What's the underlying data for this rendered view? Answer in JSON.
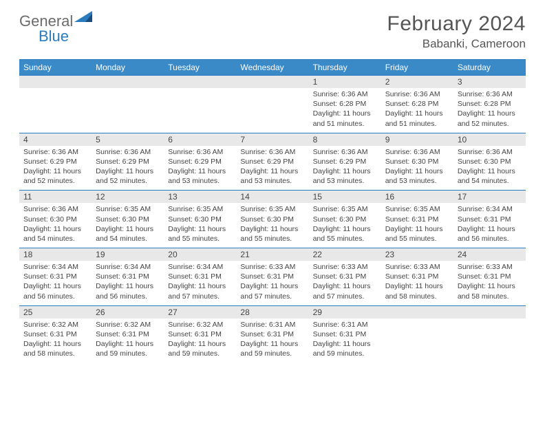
{
  "brand": {
    "word1": "General",
    "word2": "Blue"
  },
  "title": "February 2024",
  "subtitle": "Babanki, Cameroon",
  "colors": {
    "header_bg": "#3a8ac8",
    "header_text": "#ffffff",
    "border": "#2b7bbf",
    "daynum_bg": "#e8e8e8",
    "text": "#444444",
    "title_text": "#555555",
    "logo_gray": "#6b6b6b",
    "logo_blue": "#2b7bbf",
    "logo_dark": "#1a4c7a"
  },
  "day_headers": [
    "Sunday",
    "Monday",
    "Tuesday",
    "Wednesday",
    "Thursday",
    "Friday",
    "Saturday"
  ],
  "weeks": [
    [
      {
        "n": "",
        "lines": []
      },
      {
        "n": "",
        "lines": []
      },
      {
        "n": "",
        "lines": []
      },
      {
        "n": "",
        "lines": []
      },
      {
        "n": "1",
        "lines": [
          "Sunrise: 6:36 AM",
          "Sunset: 6:28 PM",
          "Daylight: 11 hours and 51 minutes."
        ]
      },
      {
        "n": "2",
        "lines": [
          "Sunrise: 6:36 AM",
          "Sunset: 6:28 PM",
          "Daylight: 11 hours and 51 minutes."
        ]
      },
      {
        "n": "3",
        "lines": [
          "Sunrise: 6:36 AM",
          "Sunset: 6:28 PM",
          "Daylight: 11 hours and 52 minutes."
        ]
      }
    ],
    [
      {
        "n": "4",
        "lines": [
          "Sunrise: 6:36 AM",
          "Sunset: 6:29 PM",
          "Daylight: 11 hours and 52 minutes."
        ]
      },
      {
        "n": "5",
        "lines": [
          "Sunrise: 6:36 AM",
          "Sunset: 6:29 PM",
          "Daylight: 11 hours and 52 minutes."
        ]
      },
      {
        "n": "6",
        "lines": [
          "Sunrise: 6:36 AM",
          "Sunset: 6:29 PM",
          "Daylight: 11 hours and 53 minutes."
        ]
      },
      {
        "n": "7",
        "lines": [
          "Sunrise: 6:36 AM",
          "Sunset: 6:29 PM",
          "Daylight: 11 hours and 53 minutes."
        ]
      },
      {
        "n": "8",
        "lines": [
          "Sunrise: 6:36 AM",
          "Sunset: 6:29 PM",
          "Daylight: 11 hours and 53 minutes."
        ]
      },
      {
        "n": "9",
        "lines": [
          "Sunrise: 6:36 AM",
          "Sunset: 6:30 PM",
          "Daylight: 11 hours and 53 minutes."
        ]
      },
      {
        "n": "10",
        "lines": [
          "Sunrise: 6:36 AM",
          "Sunset: 6:30 PM",
          "Daylight: 11 hours and 54 minutes."
        ]
      }
    ],
    [
      {
        "n": "11",
        "lines": [
          "Sunrise: 6:36 AM",
          "Sunset: 6:30 PM",
          "Daylight: 11 hours and 54 minutes."
        ]
      },
      {
        "n": "12",
        "lines": [
          "Sunrise: 6:35 AM",
          "Sunset: 6:30 PM",
          "Daylight: 11 hours and 54 minutes."
        ]
      },
      {
        "n": "13",
        "lines": [
          "Sunrise: 6:35 AM",
          "Sunset: 6:30 PM",
          "Daylight: 11 hours and 55 minutes."
        ]
      },
      {
        "n": "14",
        "lines": [
          "Sunrise: 6:35 AM",
          "Sunset: 6:30 PM",
          "Daylight: 11 hours and 55 minutes."
        ]
      },
      {
        "n": "15",
        "lines": [
          "Sunrise: 6:35 AM",
          "Sunset: 6:30 PM",
          "Daylight: 11 hours and 55 minutes."
        ]
      },
      {
        "n": "16",
        "lines": [
          "Sunrise: 6:35 AM",
          "Sunset: 6:31 PM",
          "Daylight: 11 hours and 55 minutes."
        ]
      },
      {
        "n": "17",
        "lines": [
          "Sunrise: 6:34 AM",
          "Sunset: 6:31 PM",
          "Daylight: 11 hours and 56 minutes."
        ]
      }
    ],
    [
      {
        "n": "18",
        "lines": [
          "Sunrise: 6:34 AM",
          "Sunset: 6:31 PM",
          "Daylight: 11 hours and 56 minutes."
        ]
      },
      {
        "n": "19",
        "lines": [
          "Sunrise: 6:34 AM",
          "Sunset: 6:31 PM",
          "Daylight: 11 hours and 56 minutes."
        ]
      },
      {
        "n": "20",
        "lines": [
          "Sunrise: 6:34 AM",
          "Sunset: 6:31 PM",
          "Daylight: 11 hours and 57 minutes."
        ]
      },
      {
        "n": "21",
        "lines": [
          "Sunrise: 6:33 AM",
          "Sunset: 6:31 PM",
          "Daylight: 11 hours and 57 minutes."
        ]
      },
      {
        "n": "22",
        "lines": [
          "Sunrise: 6:33 AM",
          "Sunset: 6:31 PM",
          "Daylight: 11 hours and 57 minutes."
        ]
      },
      {
        "n": "23",
        "lines": [
          "Sunrise: 6:33 AM",
          "Sunset: 6:31 PM",
          "Daylight: 11 hours and 58 minutes."
        ]
      },
      {
        "n": "24",
        "lines": [
          "Sunrise: 6:33 AM",
          "Sunset: 6:31 PM",
          "Daylight: 11 hours and 58 minutes."
        ]
      }
    ],
    [
      {
        "n": "25",
        "lines": [
          "Sunrise: 6:32 AM",
          "Sunset: 6:31 PM",
          "Daylight: 11 hours and 58 minutes."
        ]
      },
      {
        "n": "26",
        "lines": [
          "Sunrise: 6:32 AM",
          "Sunset: 6:31 PM",
          "Daylight: 11 hours and 59 minutes."
        ]
      },
      {
        "n": "27",
        "lines": [
          "Sunrise: 6:32 AM",
          "Sunset: 6:31 PM",
          "Daylight: 11 hours and 59 minutes."
        ]
      },
      {
        "n": "28",
        "lines": [
          "Sunrise: 6:31 AM",
          "Sunset: 6:31 PM",
          "Daylight: 11 hours and 59 minutes."
        ]
      },
      {
        "n": "29",
        "lines": [
          "Sunrise: 6:31 AM",
          "Sunset: 6:31 PM",
          "Daylight: 11 hours and 59 minutes."
        ]
      },
      {
        "n": "",
        "lines": []
      },
      {
        "n": "",
        "lines": []
      }
    ]
  ]
}
